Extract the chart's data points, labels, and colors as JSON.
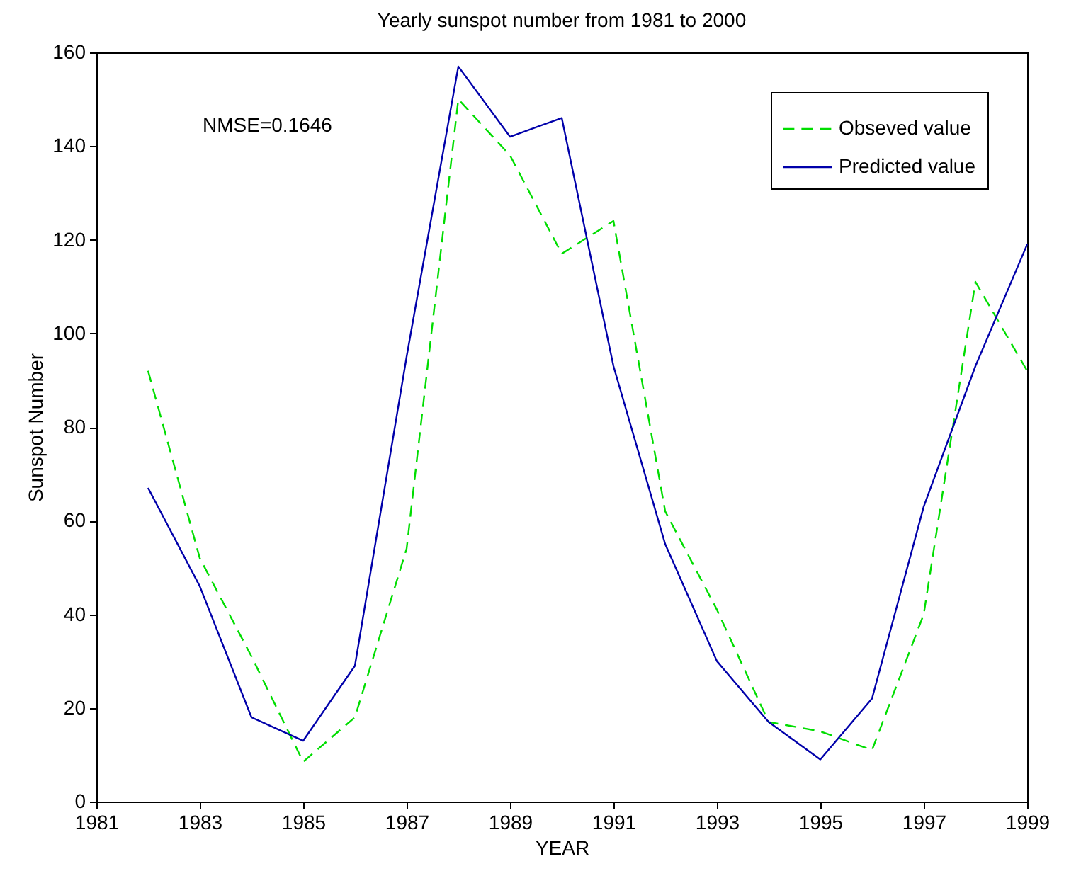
{
  "chart_data": {
    "type": "line",
    "title": "Yearly sunspot number from 1981 to 2000",
    "xlabel": "YEAR",
    "ylabel": "Sunspot Number",
    "x": [
      1982,
      1983,
      1984,
      1985,
      1986,
      1987,
      1988,
      1989,
      1990,
      1991,
      1992,
      1993,
      1994,
      1995,
      1996,
      1997,
      1998,
      1999
    ],
    "series": [
      {
        "name": "Obseved value",
        "color": "#00dd00",
        "line_style": "dashed",
        "values": [
          92,
          52,
          31,
          8.5,
          18,
          54,
          150,
          138,
          117,
          124,
          62,
          41,
          17,
          15,
          11,
          40,
          111,
          92
        ]
      },
      {
        "name": "Predicted value",
        "color": "#0000aa",
        "line_style": "solid",
        "values": [
          67,
          46,
          18,
          13,
          29,
          95,
          157,
          142,
          146,
          93,
          55,
          30,
          17,
          9,
          22,
          63,
          93,
          119
        ]
      }
    ],
    "xlim": [
      1981,
      1999
    ],
    "xticks": [
      1981,
      1983,
      1985,
      1987,
      1989,
      1991,
      1993,
      1995,
      1997,
      1999
    ],
    "ylim": [
      0,
      160
    ],
    "yticks": [
      0,
      20,
      40,
      60,
      80,
      100,
      120,
      140,
      160
    ],
    "annotations": [
      "NMSE=0.1646"
    ],
    "legend": "top right",
    "grid": false,
    "marker": "none"
  }
}
